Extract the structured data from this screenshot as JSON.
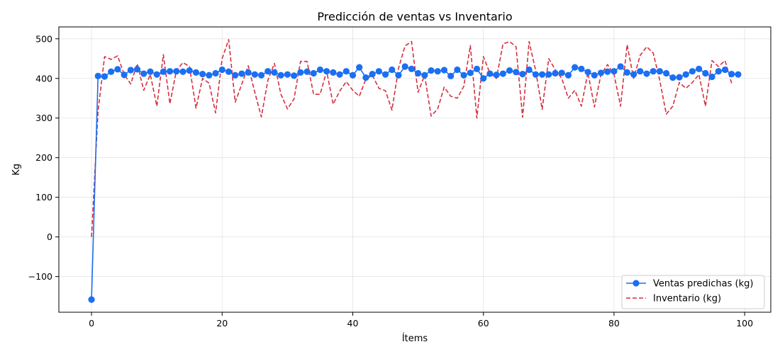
{
  "chart_data": {
    "type": "line",
    "title": "Predicción de ventas vs Inventario",
    "xlabel": "Ítems",
    "ylabel": "Kg",
    "xlim": [
      -5,
      104
    ],
    "ylim": [
      -190,
      530
    ],
    "xticks": [
      0,
      20,
      40,
      60,
      80,
      100
    ],
    "yticks": [
      -100,
      0,
      100,
      200,
      300,
      400,
      500
    ],
    "grid": true,
    "legend_position": "bottom-right",
    "x": [
      0,
      1,
      2,
      3,
      4,
      5,
      6,
      7,
      8,
      9,
      10,
      11,
      12,
      13,
      14,
      15,
      16,
      17,
      18,
      19,
      20,
      21,
      22,
      23,
      24,
      25,
      26,
      27,
      28,
      29,
      30,
      31,
      32,
      33,
      34,
      35,
      36,
      37,
      38,
      39,
      40,
      41,
      42,
      43,
      44,
      45,
      46,
      47,
      48,
      49,
      50,
      51,
      52,
      53,
      54,
      55,
      56,
      57,
      58,
      59,
      60,
      61,
      62,
      63,
      64,
      65,
      66,
      67,
      68,
      69,
      70,
      71,
      72,
      73,
      74,
      75,
      76,
      77,
      78,
      79,
      80,
      81,
      82,
      83,
      84,
      85,
      86,
      87,
      88,
      89,
      90,
      91,
      92,
      93,
      94,
      95,
      96,
      97,
      98,
      99
    ],
    "series": [
      {
        "name": "Ventas predichas (kg)",
        "color": "#1a6ff2",
        "style": "solid-markers",
        "values": [
          -158,
          406,
          405,
          417,
          423,
          409,
          421,
          423,
          412,
          417,
          410,
          417,
          418,
          418,
          417,
          420,
          415,
          411,
          408,
          413,
          422,
          417,
          408,
          412,
          415,
          410,
          408,
          418,
          415,
          408,
          410,
          407,
          415,
          417,
          413,
          422,
          418,
          415,
          410,
          418,
          408,
          428,
          402,
          411,
          418,
          410,
          422,
          408,
          430,
          424,
          413,
          408,
          420,
          418,
          421,
          406,
          422,
          408,
          414,
          424,
          400,
          412,
          409,
          412,
          420,
          416,
          411,
          422,
          410,
          410,
          410,
          413,
          414,
          408,
          428,
          424,
          416,
          408,
          414,
          417,
          418,
          430,
          415,
          410,
          418,
          412,
          418,
          418,
          413,
          402,
          403,
          410,
          418,
          424,
          413,
          404,
          418,
          422,
          411,
          410
        ]
      },
      {
        "name": "Inventario (kg)",
        "color": "#d62f3f",
        "style": "dashed",
        "values": [
          0,
          318,
          455,
          448,
          457,
          410,
          386,
          437,
          370,
          410,
          330,
          460,
          336,
          420,
          440,
          430,
          325,
          400,
          388,
          313,
          450,
          498,
          340,
          385,
          432,
          365,
          303,
          395,
          438,
          360,
          323,
          348,
          443,
          443,
          360,
          360,
          418,
          335,
          368,
          392,
          370,
          355,
          398,
          408,
          375,
          369,
          320,
          425,
          482,
          493,
          365,
          408,
          305,
          323,
          378,
          355,
          350,
          380,
          483,
          300,
          455,
          413,
          400,
          487,
          493,
          480,
          302,
          493,
          420,
          322,
          450,
          422,
          400,
          350,
          370,
          330,
          415,
          328,
          410,
          435,
          410,
          330,
          485,
          400,
          458,
          480,
          464,
          395,
          310,
          330,
          390,
          375,
          390,
          410,
          330,
          445,
          430,
          445,
          388,
          null
        ]
      }
    ]
  }
}
